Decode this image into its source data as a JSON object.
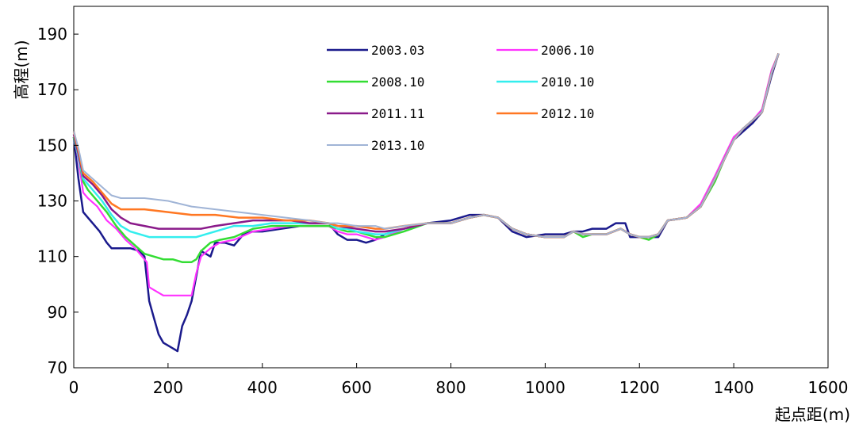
{
  "chart_data": {
    "type": "line",
    "xlabel": "起点距(m)",
    "ylabel": "高程(m)",
    "xlim": [
      0,
      1600
    ],
    "ylim": [
      70,
      200
    ],
    "xticks": [
      0,
      200,
      400,
      600,
      800,
      1000,
      1200,
      1400,
      1600
    ],
    "yticks": [
      70,
      90,
      110,
      130,
      150,
      170,
      190
    ],
    "grid": false,
    "legend_position": "top-center",
    "series": [
      {
        "name": "2003.03",
        "color": "#1a1a8c",
        "width": 2.5,
        "x": [
          0,
          10,
          20,
          30,
          40,
          55,
          70,
          80,
          90,
          100,
          120,
          140,
          150,
          160,
          170,
          180,
          190,
          200,
          210,
          220,
          230,
          240,
          250,
          260,
          270,
          280,
          290,
          300,
          320,
          340,
          360,
          380,
          400,
          440,
          480,
          520,
          545,
          560,
          580,
          600,
          620,
          640,
          660,
          700,
          750,
          800,
          840,
          870,
          900,
          930,
          960,
          1000,
          1040,
          1060,
          1080,
          1100,
          1130,
          1150,
          1170,
          1180,
          1200,
          1220,
          1240,
          1260,
          1300,
          1330,
          1360,
          1380,
          1400,
          1420,
          1440,
          1460,
          1480,
          1495
        ],
        "y": [
          153,
          138,
          126,
          124,
          122,
          119,
          115,
          113,
          113,
          113,
          113,
          112,
          110,
          94,
          88,
          82,
          79,
          78,
          77,
          76,
          85,
          89,
          94,
          103,
          112,
          111,
          110,
          115,
          115,
          114,
          118,
          119,
          119,
          120,
          121,
          121,
          121,
          118,
          116,
          116,
          115,
          116,
          118,
          120,
          122,
          123,
          125,
          125,
          124,
          119,
          117,
          118,
          118,
          119,
          119,
          120,
          120,
          122,
          122,
          117,
          117,
          117,
          117,
          123,
          124,
          128,
          138,
          145,
          152,
          155,
          158,
          162,
          175,
          183
        ]
      },
      {
        "name": "2006.10",
        "color": "#ff33ff",
        "width": 2.2,
        "x": [
          0,
          10,
          20,
          30,
          50,
          70,
          90,
          110,
          130,
          145,
          155,
          160,
          170,
          190,
          210,
          230,
          250,
          260,
          270,
          290,
          310,
          340,
          380,
          420,
          460,
          500,
          540,
          560,
          580,
          600,
          640,
          660,
          700,
          750,
          800,
          840,
          870,
          900,
          930,
          960,
          1000,
          1040,
          1060,
          1080,
          1100,
          1130,
          1160,
          1180,
          1200,
          1220,
          1240,
          1260,
          1300,
          1330,
          1360,
          1380,
          1400,
          1420,
          1440,
          1460,
          1480,
          1495
        ],
        "y": [
          153,
          145,
          133,
          131,
          128,
          123,
          120,
          116,
          113,
          110,
          108,
          99,
          98,
          96,
          96,
          96,
          96,
          104,
          110,
          113,
          115,
          116,
          119,
          120,
          121,
          121,
          121,
          119,
          118,
          118,
          116,
          117,
          120,
          122,
          122,
          124,
          125,
          124,
          120,
          118,
          117,
          117,
          119,
          118,
          118,
          118,
          120,
          118,
          117,
          117,
          118,
          123,
          124,
          129,
          139,
          146,
          153,
          156,
          159,
          163,
          177,
          183
        ]
      },
      {
        "name": "2008.10",
        "color": "#33dd33",
        "width": 2.5,
        "x": [
          0,
          10,
          20,
          30,
          50,
          70,
          90,
          110,
          130,
          150,
          170,
          190,
          210,
          230,
          250,
          260,
          270,
          290,
          310,
          340,
          380,
          420,
          460,
          500,
          540,
          560,
          580,
          600,
          640,
          660,
          700,
          750,
          800,
          840,
          870,
          900,
          930,
          960,
          1000,
          1040,
          1060,
          1080,
          1100,
          1130,
          1160,
          1180,
          1200,
          1220,
          1240,
          1260,
          1300,
          1330,
          1360,
          1380,
          1400,
          1420,
          1440,
          1460,
          1480,
          1495
        ],
        "y": [
          153,
          146,
          137,
          134,
          130,
          126,
          121,
          117,
          114,
          111,
          110,
          109,
          109,
          108,
          108,
          109,
          112,
          115,
          116,
          117,
          120,
          121,
          121,
          121,
          121,
          120,
          119,
          119,
          117,
          117,
          119,
          122,
          122,
          124,
          125,
          124,
          120,
          118,
          117,
          117,
          119,
          117,
          118,
          118,
          120,
          118,
          117,
          116,
          118,
          123,
          124,
          128,
          137,
          145,
          152,
          156,
          159,
          162,
          176,
          183
        ]
      },
      {
        "name": "2010.10",
        "color": "#33eeee",
        "width": 2.5,
        "x": [
          0,
          10,
          20,
          40,
          60,
          80,
          100,
          120,
          140,
          160,
          180,
          200,
          220,
          240,
          260,
          280,
          300,
          340,
          380,
          420,
          460,
          500,
          540,
          560,
          580,
          600,
          640,
          660,
          700,
          750,
          800,
          840,
          870,
          900,
          930,
          960,
          1000,
          1040,
          1060,
          1080,
          1100,
          1130,
          1160,
          1180,
          1200,
          1220,
          1240,
          1260,
          1300,
          1330,
          1360,
          1380,
          1400,
          1420,
          1440,
          1460,
          1480,
          1495
        ],
        "y": [
          154,
          146,
          138,
          134,
          130,
          125,
          121,
          119,
          118,
          117,
          117,
          117,
          117,
          117,
          117,
          118,
          119,
          121,
          121,
          122,
          122,
          122,
          122,
          120,
          120,
          119,
          118,
          118,
          120,
          122,
          122,
          124,
          125,
          124,
          120,
          118,
          117,
          117,
          119,
          118,
          118,
          118,
          120,
          118,
          117,
          117,
          118,
          123,
          124,
          128,
          138,
          145,
          152,
          156,
          159,
          162,
          176,
          183
        ]
      },
      {
        "name": "2011.11",
        "color": "#8a1a8a",
        "width": 2.5,
        "x": [
          0,
          10,
          20,
          40,
          60,
          80,
          100,
          120,
          150,
          180,
          210,
          240,
          270,
          300,
          340,
          380,
          420,
          460,
          500,
          540,
          560,
          600,
          640,
          660,
          700,
          750,
          800,
          840,
          870,
          900,
          930,
          960,
          1000,
          1040,
          1060,
          1080,
          1100,
          1130,
          1160,
          1180,
          1200,
          1220,
          1240,
          1260,
          1300,
          1330,
          1360,
          1380,
          1400,
          1420,
          1440,
          1460,
          1480,
          1495
        ],
        "y": [
          154,
          147,
          139,
          136,
          132,
          127,
          124,
          122,
          121,
          120,
          120,
          120,
          120,
          121,
          122,
          123,
          123,
          123,
          122,
          122,
          121,
          120,
          119,
          119,
          120,
          122,
          122,
          124,
          125,
          124,
          120,
          118,
          117,
          117,
          119,
          118,
          118,
          118,
          120,
          118,
          117,
          117,
          118,
          123,
          124,
          128,
          138,
          145,
          152,
          156,
          159,
          162,
          176,
          183
        ]
      },
      {
        "name": "2012.10",
        "color": "#ff7722",
        "width": 2.5,
        "x": [
          0,
          10,
          20,
          40,
          60,
          80,
          100,
          150,
          200,
          250,
          300,
          350,
          400,
          450,
          500,
          540,
          560,
          600,
          640,
          660,
          700,
          750,
          800,
          840,
          870,
          900,
          930,
          960,
          1000,
          1040,
          1060,
          1080,
          1100,
          1130,
          1160,
          1180,
          1200,
          1220,
          1240,
          1260,
          1300,
          1330,
          1360,
          1380,
          1400,
          1420,
          1440,
          1460,
          1480,
          1495
        ],
        "y": [
          155,
          148,
          140,
          137,
          133,
          129,
          127,
          127,
          126,
          125,
          125,
          124,
          124,
          123,
          123,
          122,
          121,
          121,
          120,
          120,
          121,
          122,
          122,
          124,
          125,
          124,
          120,
          118,
          117,
          117,
          119,
          118,
          118,
          118,
          120,
          118,
          117,
          117,
          118,
          123,
          124,
          128,
          138,
          145,
          152,
          156,
          159,
          162,
          176,
          183
        ]
      },
      {
        "name": "2013.10",
        "color": "#a0b4d6",
        "width": 2,
        "x": [
          0,
          10,
          20,
          40,
          60,
          80,
          100,
          150,
          200,
          250,
          300,
          350,
          400,
          450,
          500,
          540,
          560,
          600,
          640,
          660,
          700,
          750,
          800,
          840,
          870,
          900,
          930,
          960,
          1000,
          1040,
          1060,
          1080,
          1100,
          1130,
          1160,
          1180,
          1200,
          1220,
          1240,
          1260,
          1300,
          1330,
          1360,
          1380,
          1400,
          1420,
          1440,
          1460,
          1480,
          1495
        ],
        "y": [
          155,
          149,
          141,
          138,
          135,
          132,
          131,
          131,
          130,
          128,
          127,
          126,
          125,
          124,
          123,
          122,
          122,
          121,
          121,
          120,
          121,
          122,
          122,
          124,
          125,
          124,
          120,
          118,
          117,
          117,
          119,
          118,
          118,
          118,
          120,
          118,
          117,
          117,
          118,
          123,
          124,
          128,
          138,
          145,
          152,
          156,
          159,
          162,
          176,
          183
        ]
      }
    ]
  }
}
